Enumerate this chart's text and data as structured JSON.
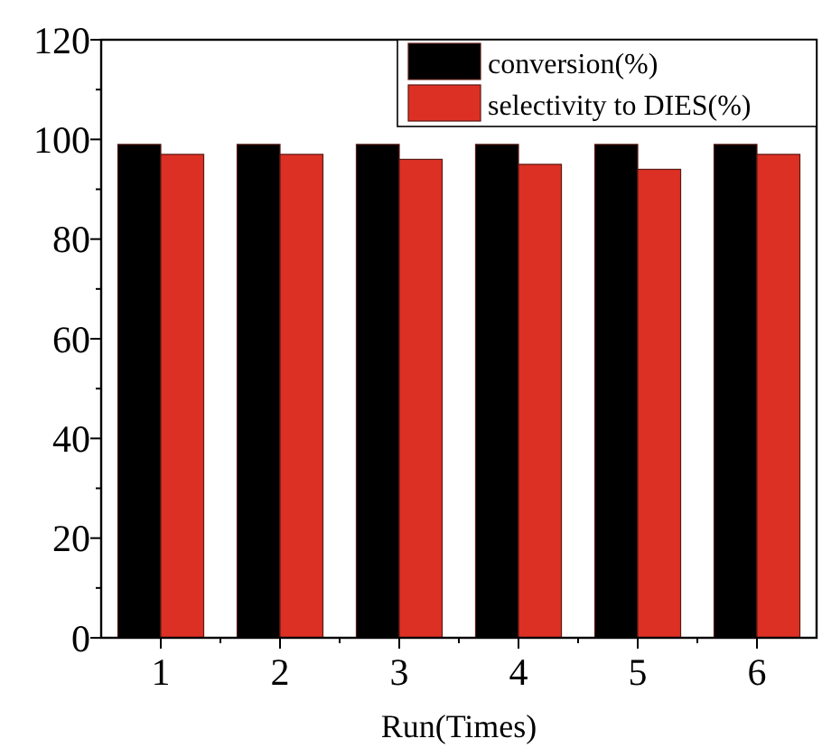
{
  "chart_data": {
    "type": "bar",
    "xlabel": "Run(Times)",
    "categories": [
      "1",
      "2",
      "3",
      "4",
      "5",
      "6"
    ],
    "series": [
      {
        "name": "conversion(%)",
        "color": "#000000",
        "values": [
          99,
          99,
          99,
          99,
          99,
          99
        ]
      },
      {
        "name": "selectivity to DIES(%)",
        "color": "#dc3024",
        "values": [
          97,
          97,
          96,
          95,
          94,
          97
        ]
      }
    ],
    "ylim": [
      0,
      120
    ],
    "yticks": [
      0,
      20,
      40,
      60,
      80,
      100,
      120
    ],
    "legend": "top right",
    "grid": false
  }
}
